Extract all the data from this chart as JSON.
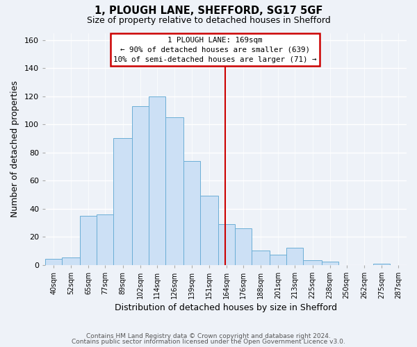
{
  "title": "1, PLOUGH LANE, SHEFFORD, SG17 5GF",
  "subtitle": "Size of property relative to detached houses in Shefford",
  "xlabel": "Distribution of detached houses by size in Shefford",
  "ylabel": "Number of detached properties",
  "bin_labels": [
    "40sqm",
    "52sqm",
    "65sqm",
    "77sqm",
    "89sqm",
    "102sqm",
    "114sqm",
    "126sqm",
    "139sqm",
    "151sqm",
    "164sqm",
    "176sqm",
    "188sqm",
    "201sqm",
    "213sqm",
    "225sqm",
    "238sqm",
    "250sqm",
    "262sqm",
    "275sqm",
    "287sqm"
  ],
  "bar_heights": [
    4,
    5,
    35,
    36,
    90,
    113,
    120,
    105,
    74,
    49,
    29,
    26,
    10,
    7,
    12,
    3,
    2,
    0,
    0,
    1,
    0
  ],
  "bar_color": "#cce0f5",
  "bar_edgecolor": "#6baed6",
  "vline_x_bin": 10,
  "vline_label": "1 PLOUGH LANE: 169sqm",
  "annotation_line1": "← 90% of detached houses are smaller (639)",
  "annotation_line2": "10% of semi-detached houses are larger (71) →",
  "box_facecolor": "white",
  "box_edgecolor": "#cc0000",
  "vline_color": "#cc0000",
  "ylim": [
    0,
    165
  ],
  "bin_edges_sqm": [
    40,
    52,
    65,
    77,
    89,
    102,
    114,
    126,
    139,
    151,
    164,
    176,
    188,
    201,
    213,
    225,
    238,
    250,
    262,
    275,
    287,
    299
  ],
  "footer_line1": "Contains HM Land Registry data © Crown copyright and database right 2024.",
  "footer_line2": "Contains public sector information licensed under the Open Government Licence v3.0.",
  "background_color": "#eef2f8",
  "grid_color": "white",
  "yticks": [
    0,
    20,
    40,
    60,
    80,
    100,
    120,
    140,
    160
  ]
}
